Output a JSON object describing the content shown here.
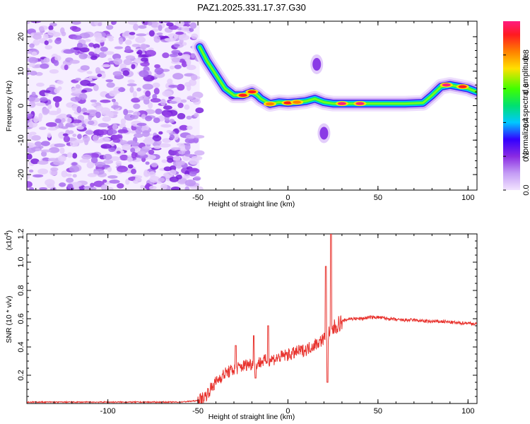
{
  "title": "PAZ1.2025.331.17.37.G30",
  "chart_data": [
    {
      "type": "heatmap",
      "name": "spectrogram",
      "xlabel": "Height of straight line (km)",
      "ylabel": "Frequency (Hz)",
      "xlim": [
        -145,
        105
      ],
      "ylim": [
        -24.5,
        24.5
      ],
      "xticks": [
        -100,
        -50,
        0,
        50,
        100
      ],
      "yticks": [
        -20,
        -10,
        0,
        10,
        20
      ],
      "colorbar": {
        "label": "Normalized spectral amplitude",
        "range": [
          0,
          1
        ],
        "ticks": [
          "0.0",
          "0.2",
          "0.4",
          "0.6",
          "0.8"
        ],
        "colormap": [
          "#f2e4ff",
          "#c49cf5",
          "#8a2be2",
          "#3300ff",
          "#00c8ff",
          "#00e070",
          "#40ff00",
          "#ffe000",
          "#ff8000",
          "#ff1a20",
          "#ff1a80"
        ]
      },
      "noise_region_x": [
        -145,
        -49
      ],
      "ridge": [
        {
          "x": -49,
          "f": 17
        },
        {
          "x": -45,
          "f": 13
        },
        {
          "x": -40,
          "f": 9
        },
        {
          "x": -35,
          "f": 5
        },
        {
          "x": -30,
          "f": 3
        },
        {
          "x": -25,
          "f": 3
        },
        {
          "x": -20,
          "f": 4
        },
        {
          "x": -17,
          "f": 3
        },
        {
          "x": -15,
          "f": 2
        },
        {
          "x": -10,
          "f": 0.5
        },
        {
          "x": -5,
          "f": 1
        },
        {
          "x": 0,
          "f": 0.8
        },
        {
          "x": 5,
          "f": 1
        },
        {
          "x": 10,
          "f": 1.3
        },
        {
          "x": 15,
          "f": 2
        },
        {
          "x": 20,
          "f": 1
        },
        {
          "x": 25,
          "f": 0.6
        },
        {
          "x": 35,
          "f": 0.6
        },
        {
          "x": 45,
          "f": 0.6
        },
        {
          "x": 55,
          "f": 0.6
        },
        {
          "x": 65,
          "f": 0.6
        },
        {
          "x": 75,
          "f": 0.8
        },
        {
          "x": 80,
          "f": 3
        },
        {
          "x": 85,
          "f": 5.5
        },
        {
          "x": 90,
          "f": 6
        },
        {
          "x": 95,
          "f": 5.5
        },
        {
          "x": 100,
          "f": 5
        },
        {
          "x": 105,
          "f": 4
        }
      ],
      "hot_spots": [
        {
          "x": -25,
          "f": 3,
          "amp": 0.85
        },
        {
          "x": -20,
          "f": 4,
          "amp": 0.9
        },
        {
          "x": -10,
          "f": 0.5,
          "amp": 0.8
        },
        {
          "x": 0,
          "f": 0.8,
          "amp": 0.85
        },
        {
          "x": 5,
          "f": 1,
          "amp": 0.8
        },
        {
          "x": 30,
          "f": 0.6,
          "amp": 0.95
        },
        {
          "x": 40,
          "f": 0.6,
          "amp": 0.95
        },
        {
          "x": 88,
          "f": 6,
          "amp": 0.95
        },
        {
          "x": 97,
          "f": 5.5,
          "amp": 0.85
        }
      ],
      "side_features": [
        {
          "x": 16,
          "f": 12,
          "amp": 0.3
        },
        {
          "x": 20,
          "f": -8,
          "amp": 0.35
        }
      ]
    },
    {
      "type": "line",
      "name": "snr",
      "xlabel": "Height of straight line (km)",
      "ylabel": "SNR (10 * v/v)",
      "scale_label": "(x10",
      "scale_exp": "4",
      "xlim": [
        -145,
        105
      ],
      "ylim": [
        0,
        1.2
      ],
      "xticks": [
        -100,
        -50,
        0,
        50,
        100
      ],
      "yticks": [
        "0.2",
        "0.4",
        "0.6",
        "0.8",
        "1.0",
        "1.2"
      ],
      "color": "#e8332e",
      "points": [
        [
          -145,
          0.01
        ],
        [
          -120,
          0.01
        ],
        [
          -100,
          0.01
        ],
        [
          -80,
          0.01
        ],
        [
          -60,
          0.01
        ],
        [
          -50,
          0.02
        ],
        [
          -46,
          0.05
        ],
        [
          -42,
          0.12
        ],
        [
          -38,
          0.18
        ],
        [
          -34,
          0.22
        ],
        [
          -30,
          0.24
        ],
        [
          -26,
          0.26
        ],
        [
          -22,
          0.28
        ],
        [
          -18,
          0.28
        ],
        [
          -14,
          0.3
        ],
        [
          -10,
          0.31
        ],
        [
          -6,
          0.32
        ],
        [
          -2,
          0.34
        ],
        [
          2,
          0.35
        ],
        [
          6,
          0.37
        ],
        [
          10,
          0.38
        ],
        [
          14,
          0.41
        ],
        [
          18,
          0.44
        ],
        [
          22,
          0.48
        ],
        [
          26,
          0.54
        ],
        [
          30,
          0.58
        ],
        [
          34,
          0.6
        ],
        [
          40,
          0.6
        ],
        [
          46,
          0.61
        ],
        [
          50,
          0.61
        ],
        [
          56,
          0.6
        ],
        [
          62,
          0.59
        ],
        [
          70,
          0.59
        ],
        [
          78,
          0.58
        ],
        [
          86,
          0.58
        ],
        [
          94,
          0.57
        ],
        [
          100,
          0.57
        ],
        [
          105,
          0.56
        ]
      ],
      "spikes": [
        {
          "x": -29,
          "y": 0.41
        },
        {
          "x": -19,
          "y": 0.48
        },
        {
          "x": -18,
          "y": 0.18
        },
        {
          "x": -11,
          "y": 0.55
        },
        {
          "x": 21,
          "y": 0.97
        },
        {
          "x": 22,
          "y": 0.15
        },
        {
          "x": 24,
          "y": 1.2
        }
      ]
    }
  ]
}
